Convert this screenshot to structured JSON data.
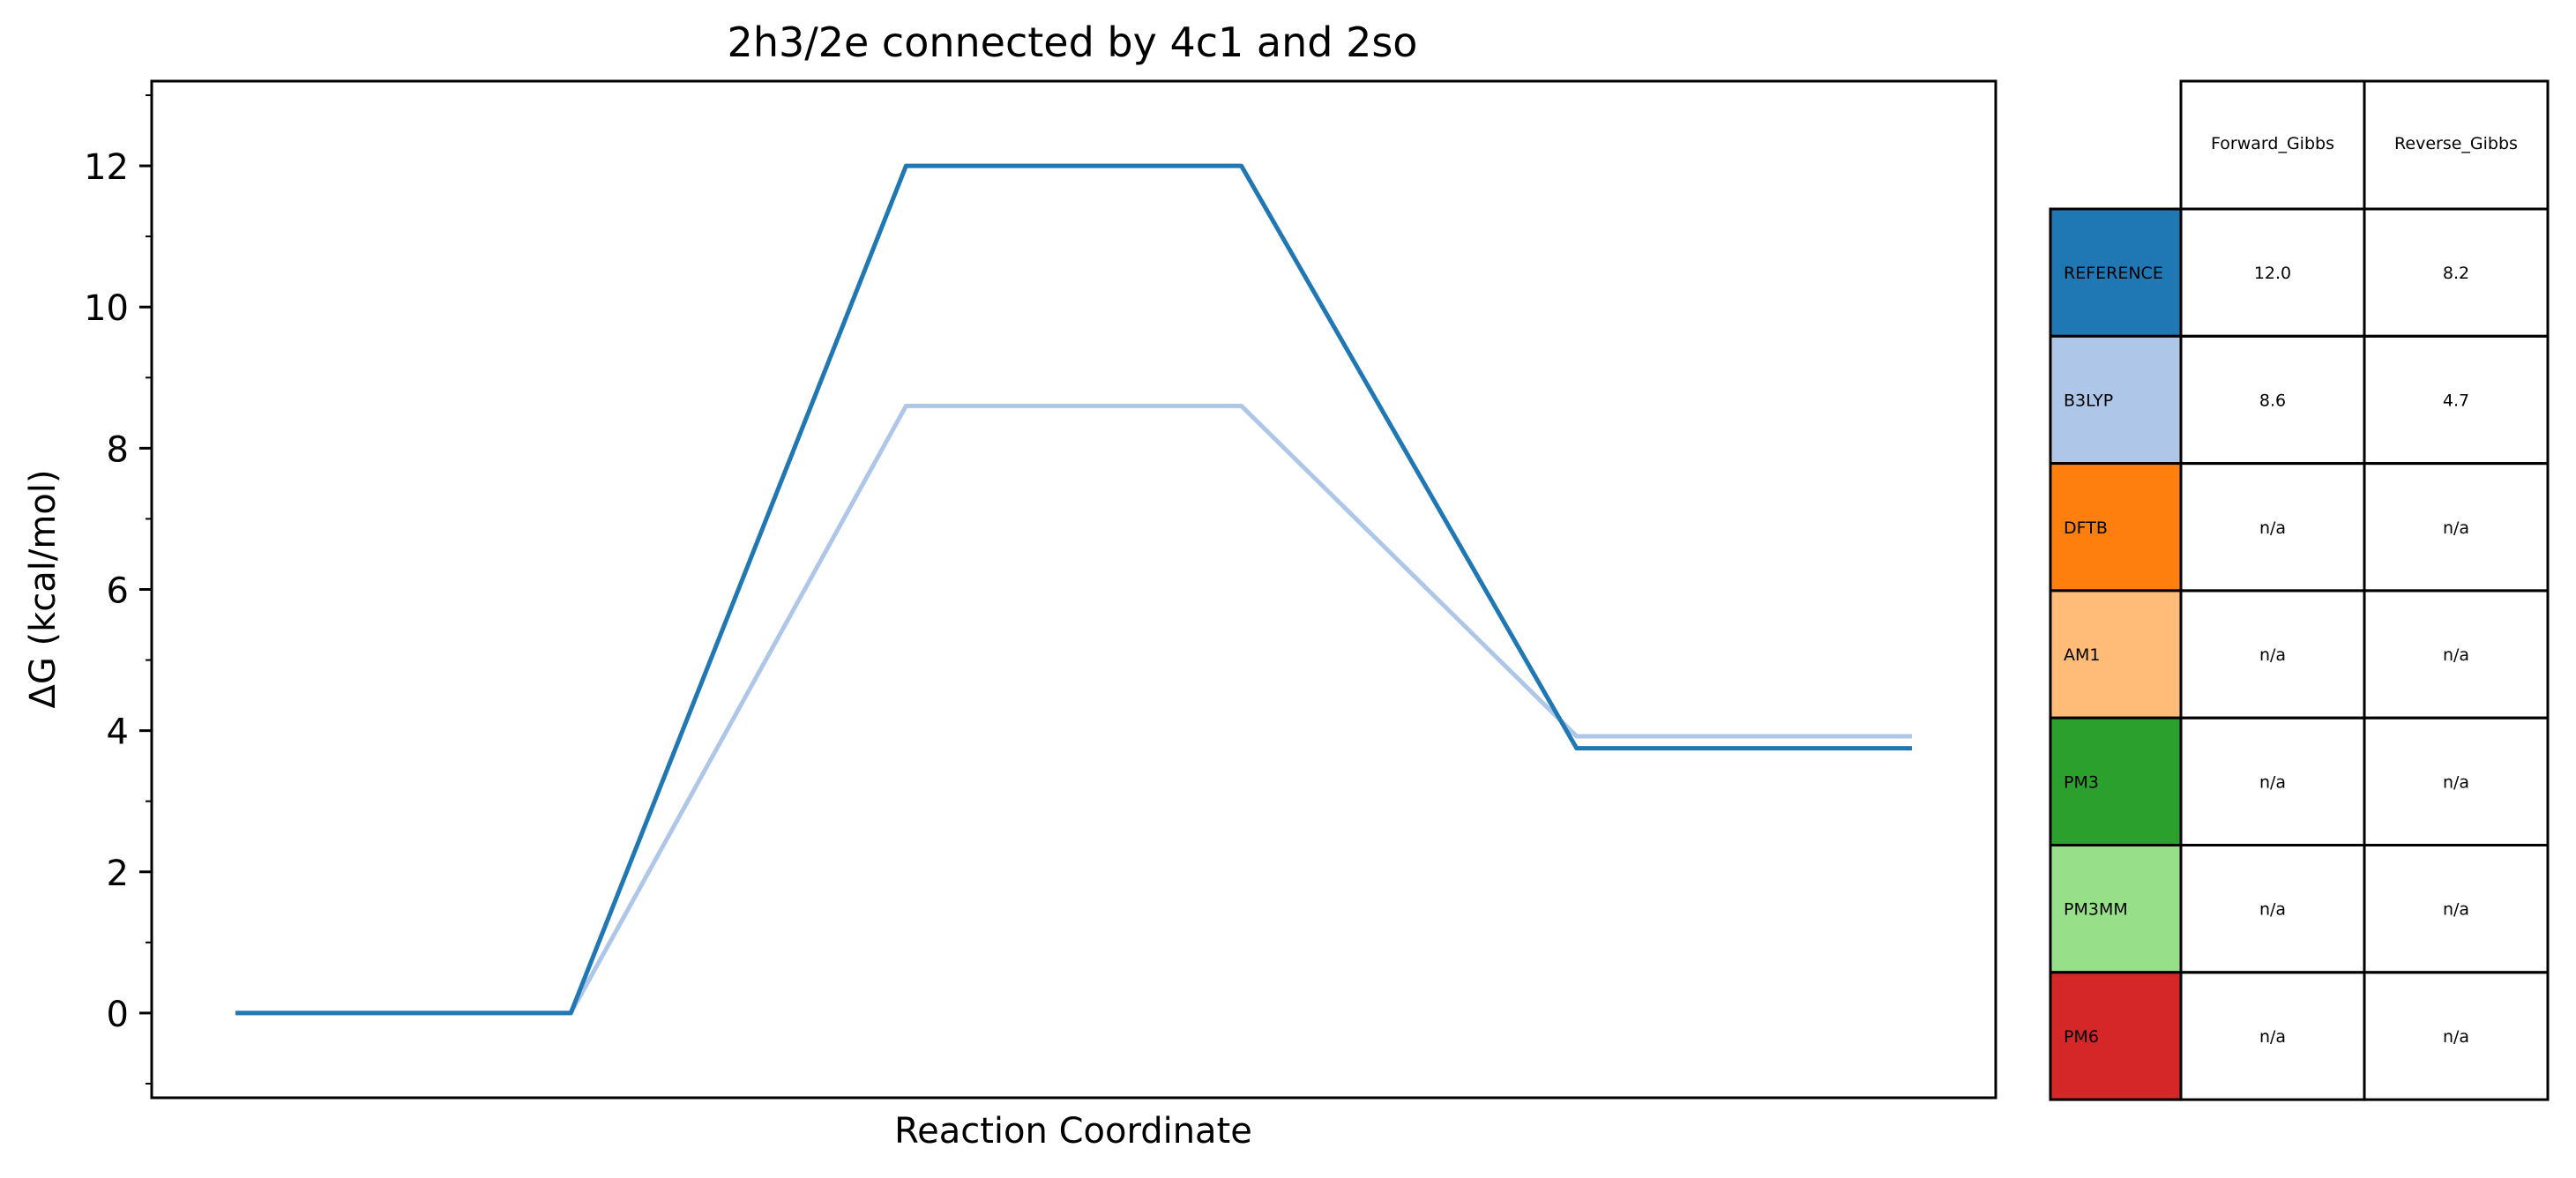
{
  "chart_data": {
    "type": "line",
    "title": "2h3/2e connected by 4c1 and 2so",
    "xlabel": "Reaction Coordinate",
    "ylabel": "ΔG (kcal/mol)",
    "xlim": [
      -0.25,
      5.25
    ],
    "ylim": [
      -1.2,
      13.2
    ],
    "yticks": [
      0,
      2,
      4,
      6,
      8,
      10,
      12
    ],
    "yticks_minor": [
      -1,
      1,
      3,
      5,
      7,
      9,
      11,
      13
    ],
    "x_ticks_shown": false,
    "grid": false,
    "series": [
      {
        "name": "REFERENCE",
        "color": "#1f77b4",
        "x": [
          0,
          1,
          2,
          3,
          4,
          5
        ],
        "y": [
          0,
          0,
          12.0,
          12.0,
          3.75,
          3.75
        ]
      },
      {
        "name": "B3LYP",
        "color": "#aec7e8",
        "x": [
          0,
          1,
          2,
          3,
          4,
          5
        ],
        "y": [
          0,
          0,
          8.6,
          8.6,
          3.92,
          3.92
        ]
      }
    ]
  },
  "table": {
    "columns": [
      "Forward_Gibbs",
      "Reverse_Gibbs"
    ],
    "rows": [
      {
        "label": "REFERENCE",
        "color": "#1f77b4",
        "forward": "12.0",
        "reverse": "8.2"
      },
      {
        "label": "B3LYP",
        "color": "#aec7e8",
        "forward": "8.6",
        "reverse": "4.7"
      },
      {
        "label": "DFTB",
        "color": "#ff7f0e",
        "forward": "n/a",
        "reverse": "n/a"
      },
      {
        "label": "AM1",
        "color": "#ffbb78",
        "forward": "n/a",
        "reverse": "n/a"
      },
      {
        "label": "PM3",
        "color": "#2ca02c",
        "forward": "n/a",
        "reverse": "n/a"
      },
      {
        "label": "PM3MM",
        "color": "#98df8a",
        "forward": "n/a",
        "reverse": "n/a"
      },
      {
        "label": "PM6",
        "color": "#d62728",
        "forward": "n/a",
        "reverse": "n/a"
      }
    ]
  }
}
